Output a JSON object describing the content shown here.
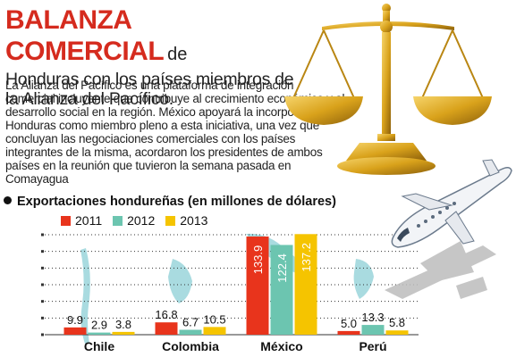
{
  "header": {
    "title_main": "BALANZA COMERCIAL",
    "title_de": "de",
    "subtitle": "Honduras con los países miembros de la Alianza del Pacífico."
  },
  "intro_text": "La Alianza del Pacífico es una plataforma de integración comercial incluyente que contribuye al crecimiento económico y al desarrollo social en la región. México apoyará la incorporación de Honduras como miembro pleno a esta iniciativa, una vez que concluyan las negociaciones comerciales con los países integrantes de la misma, acordaron los presidentes de ambos países en la reunión que tuvieron la semana pasada en Comayagua",
  "section_title": "Exportaciones hondureñas (en millones de dólares)",
  "colors": {
    "title_red": "#d52b1e",
    "s2011": "#e8341c",
    "s2012": "#6cc5b0",
    "s2013": "#f5c400",
    "map_bg": "#a9dbe0",
    "gold": "#d9a21b"
  },
  "icons": [
    "scale-icon",
    "airplane-icon"
  ],
  "chart_data": {
    "type": "bar",
    "title": "Exportaciones hondureñas (en millones de dólares)",
    "categories": [
      "Chile",
      "Colombia",
      "México",
      "Perú"
    ],
    "series": [
      {
        "name": "2011",
        "values": [
          9.9,
          16.8,
          133.9,
          5.0
        ],
        "labels": [
          "9.9",
          "16.8",
          "133.9",
          "5.0"
        ]
      },
      {
        "name": "2012",
        "values": [
          2.9,
          6.7,
          122.4,
          13.3
        ],
        "labels": [
          "2.9",
          "6.7",
          "122.4",
          "13.3"
        ]
      },
      {
        "name": "2013",
        "values": [
          3.8,
          10.5,
          137.2,
          5.8
        ],
        "labels": [
          "3.8",
          "10.5",
          "137.2",
          "5.8"
        ]
      }
    ],
    "legend_position": "top-left",
    "grid": true,
    "ylim": [
      0,
      140
    ]
  }
}
